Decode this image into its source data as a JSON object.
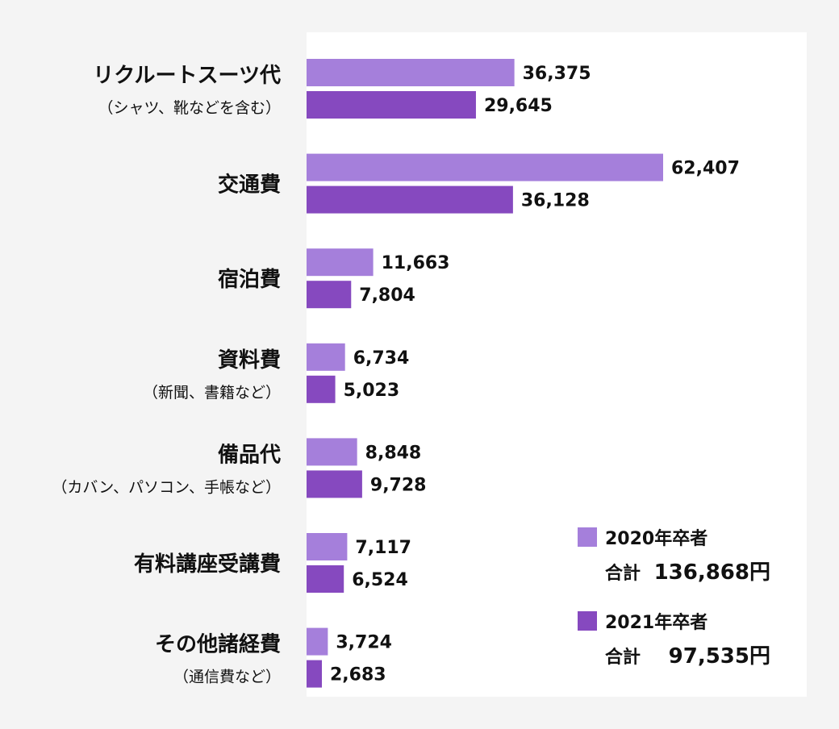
{
  "chart_data": {
    "type": "bar",
    "orientation": "horizontal",
    "categories": [
      {
        "label": "リクルートスーツ代",
        "sub": "（シャツ、靴などを含む）"
      },
      {
        "label": "交通費",
        "sub": ""
      },
      {
        "label": "宿泊費",
        "sub": ""
      },
      {
        "label": "資料費",
        "sub": "（新聞、書籍など）"
      },
      {
        "label": "備品代",
        "sub": "（カバン、パソコン、手帳など）"
      },
      {
        "label": "有料講座受講費",
        "sub": ""
      },
      {
        "label": "その他諸経費",
        "sub": "（通信費など）"
      }
    ],
    "series": [
      {
        "name": "2020年卒者",
        "color": "#a57fdb",
        "values": [
          36375,
          62407,
          11663,
          6734,
          8848,
          7117,
          3724
        ],
        "value_labels": [
          "36,375",
          "62,407",
          "11,663",
          "6,734",
          "8,848",
          "7,117",
          "3,724"
        ],
        "total_label": "合計",
        "total_value": "136,868円"
      },
      {
        "name": "2021年卒者",
        "color": "#8649bf",
        "values": [
          29645,
          36128,
          7804,
          5023,
          9728,
          6524,
          2683
        ],
        "value_labels": [
          "29,645",
          "36,128",
          "7,804",
          "5,023",
          "9,728",
          "6,524",
          "2,683"
        ],
        "total_label": "合計",
        "total_value": "97,535円"
      }
    ],
    "legend_position": "bottom-right",
    "grid": false
  }
}
